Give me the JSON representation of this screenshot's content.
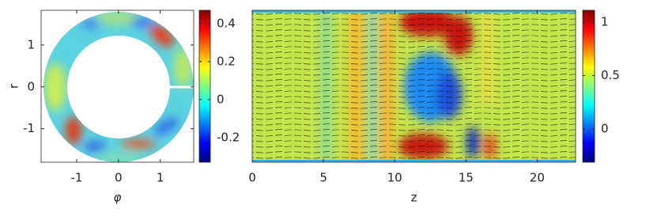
{
  "chart_data": [
    {
      "type": "heatmap",
      "colormap": "jet",
      "xlabel": "φ",
      "ylabel": "r",
      "xlim": [
        -1.85,
        1.8
      ],
      "ylim": [
        -1.8,
        1.83
      ],
      "xticks": [
        -1,
        0,
        1
      ],
      "yticks": [
        -1,
        0,
        1
      ],
      "colorbar": {
        "lim": [
          -0.33,
          0.47
        ],
        "ticks": [
          -0.2,
          0,
          0.2,
          0.4
        ]
      }
    },
    {
      "type": "heatmap",
      "colormap": "jet",
      "xlabel": "z",
      "xlim": [
        0,
        22.7
      ],
      "xticks": [
        0,
        5,
        10,
        15,
        20
      ],
      "colorbar": {
        "lim": [
          -0.31,
          1.11
        ],
        "ticks": [
          0,
          0.5,
          1
        ]
      }
    }
  ]
}
